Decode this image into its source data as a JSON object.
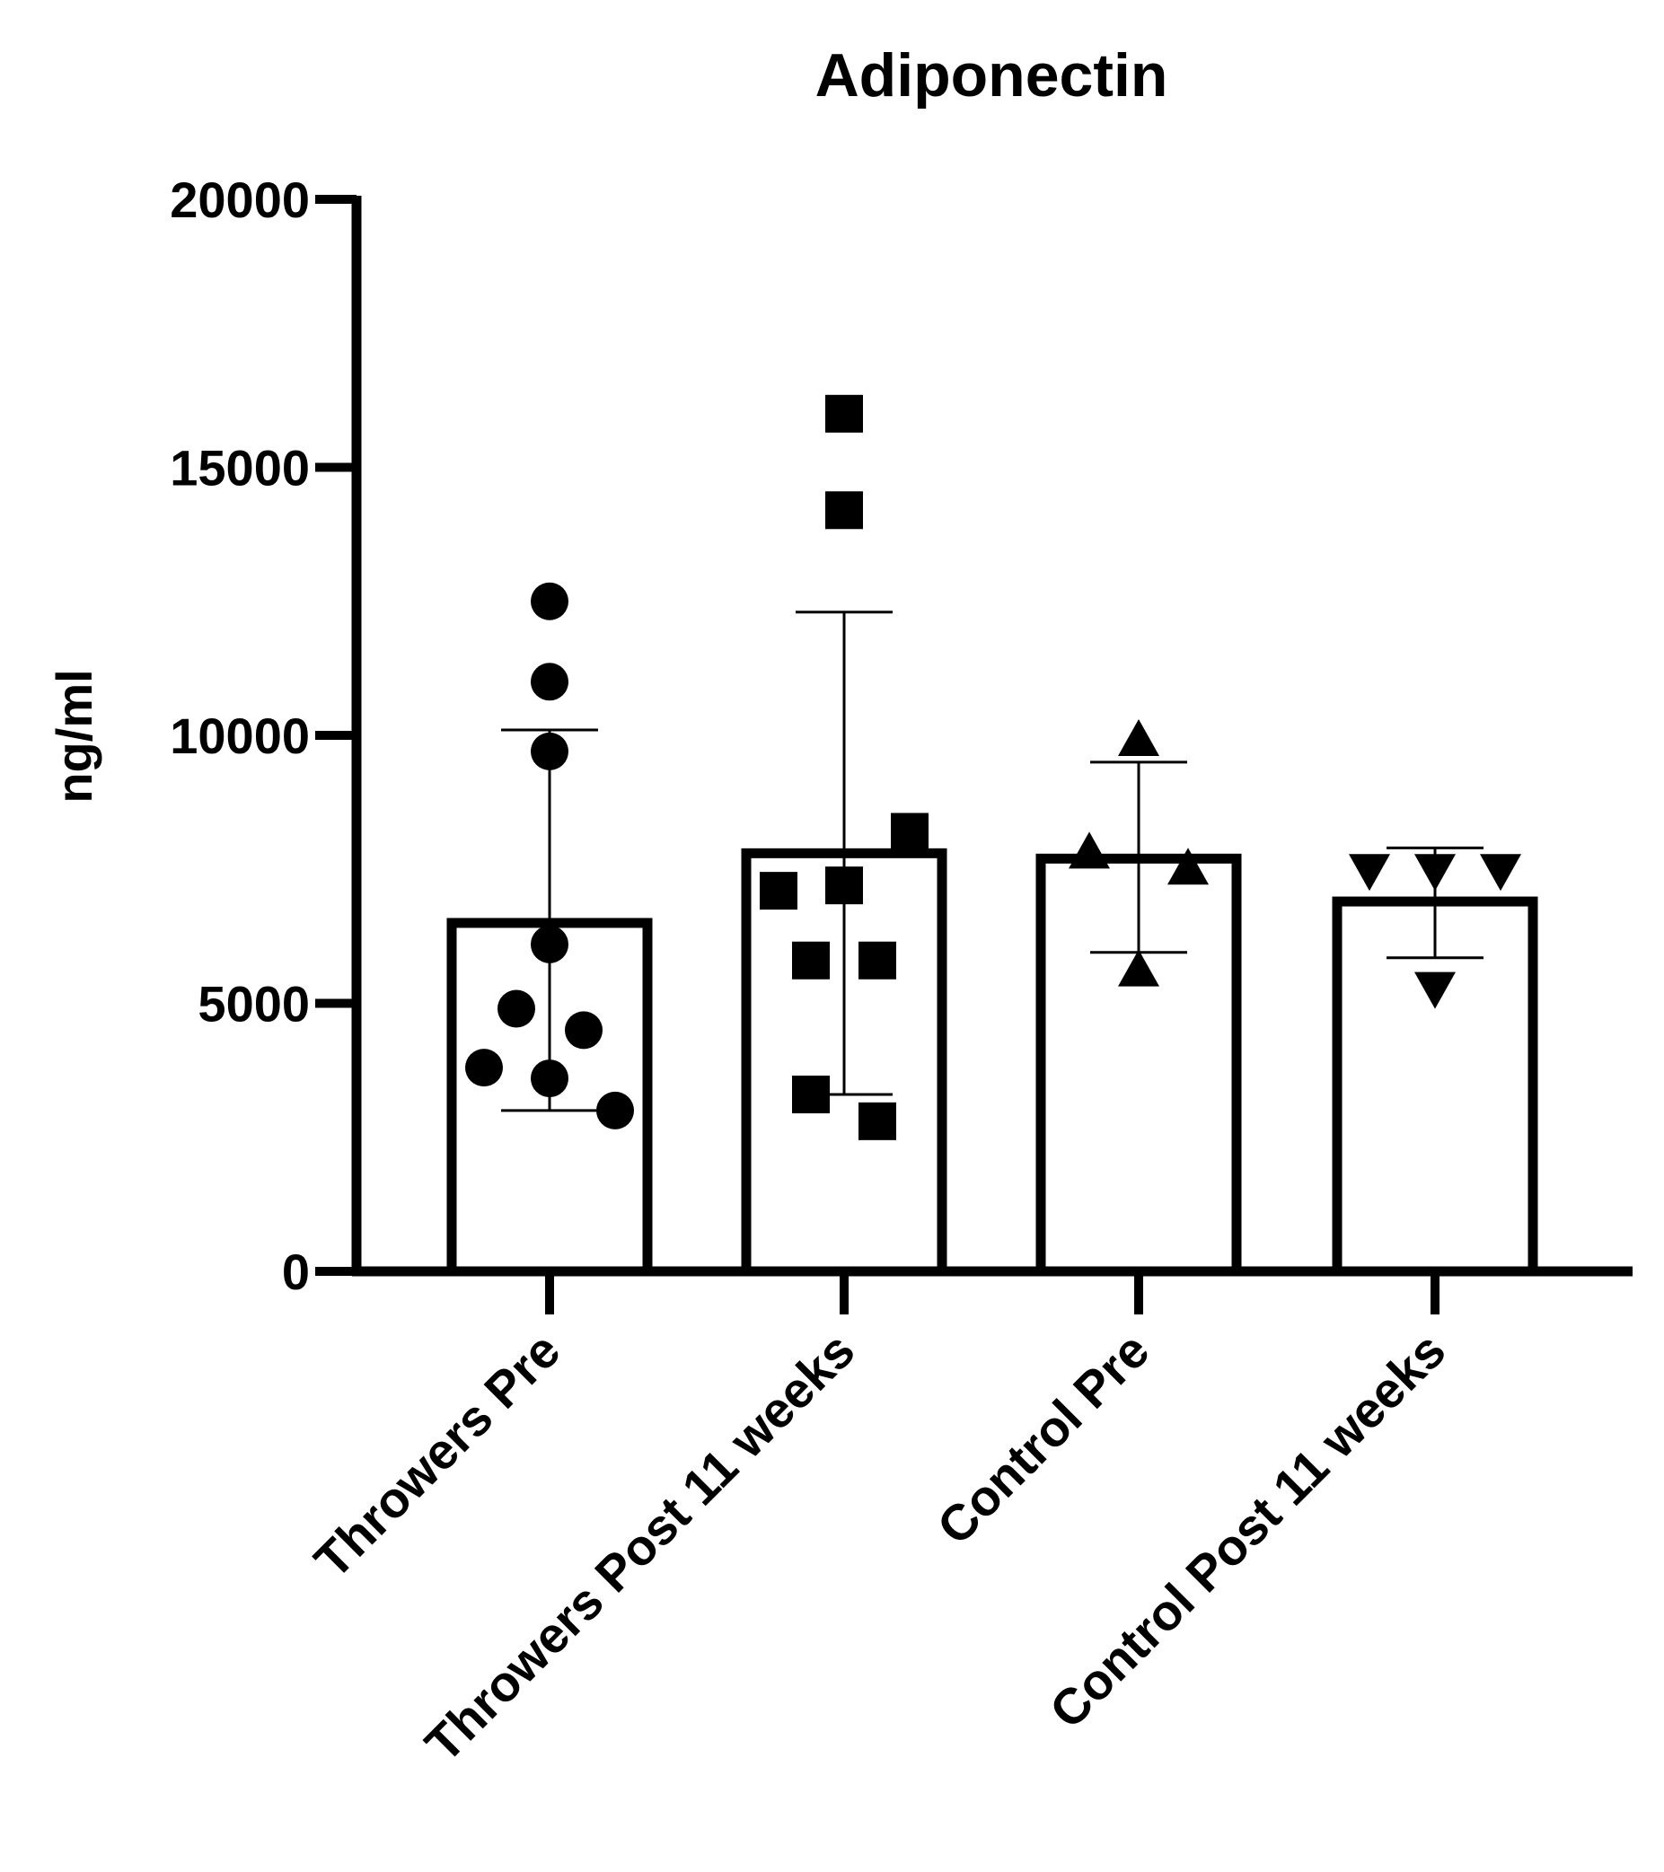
{
  "chart_data": {
    "type": "bar",
    "title": "Adiponectin",
    "xlabel": "",
    "ylabel": "ng/ml",
    "ylim": [
      0,
      20000
    ],
    "yticks": [
      0,
      5000,
      10000,
      15000,
      20000
    ],
    "grid": false,
    "legend": "none",
    "categories": [
      "Throwers Pre",
      "Throwers Post 11 weeks",
      "Control Pre",
      "Control Post 11 weeks"
    ],
    "series": [
      {
        "values": [
          6500,
          7800,
          7700,
          6900
        ],
        "error_high": [
          10100,
          12300,
          9500,
          7900
        ],
        "error_low": [
          3000,
          3300,
          5950,
          5850
        ],
        "points": [
          [
            12500,
            11000,
            9700,
            6100,
            4900,
            4500,
            3800,
            3600,
            3000
          ],
          [
            16000,
            14200,
            8200,
            7200,
            7100,
            5800,
            5800,
            3300,
            2800
          ],
          [
            9900,
            7800,
            7500,
            5600
          ],
          [
            7500,
            7500,
            7500,
            5300
          ]
        ],
        "markers": [
          "circle",
          "square",
          "triangle-up",
          "triangle-down"
        ]
      }
    ]
  }
}
